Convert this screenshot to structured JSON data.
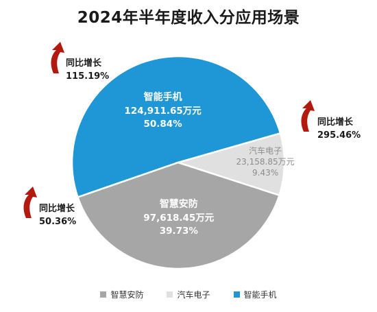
{
  "title": "2024年半年度收入分应用场景",
  "chart_data": {
    "type": "pie",
    "title": "2024年半年度收入分应用场景",
    "slices": [
      {
        "name": "智能手机",
        "value_label": "124,911.65万元",
        "percent_label": "50.84%",
        "value": 124911.65,
        "percent": 50.84,
        "color": "#1f97d6",
        "text_color": "#ffffff",
        "growth_label": "同比增长",
        "growth_value": "295.46%"
      },
      {
        "name": "智慧安防",
        "value_label": "97,618.45万元",
        "percent_label": "39.73%",
        "value": 97618.45,
        "percent": 39.73,
        "color": "#a6a6a6",
        "text_color": "#ffffff",
        "growth_label": "同比增长",
        "growth_value": "50.36%"
      },
      {
        "name": "汽车电子",
        "value_label": "23,158.85万元",
        "percent_label": "9.43%",
        "value": 23158.85,
        "percent": 9.43,
        "color": "#e0e0e0",
        "text_color": "#8c8c8c",
        "growth_label": "同比增长",
        "growth_value": "115.19%"
      }
    ],
    "legend": [
      "智慧安防",
      "汽车电子",
      "智能手机"
    ],
    "legend_position": "bottom",
    "arrow_color": "#b21a0f"
  }
}
